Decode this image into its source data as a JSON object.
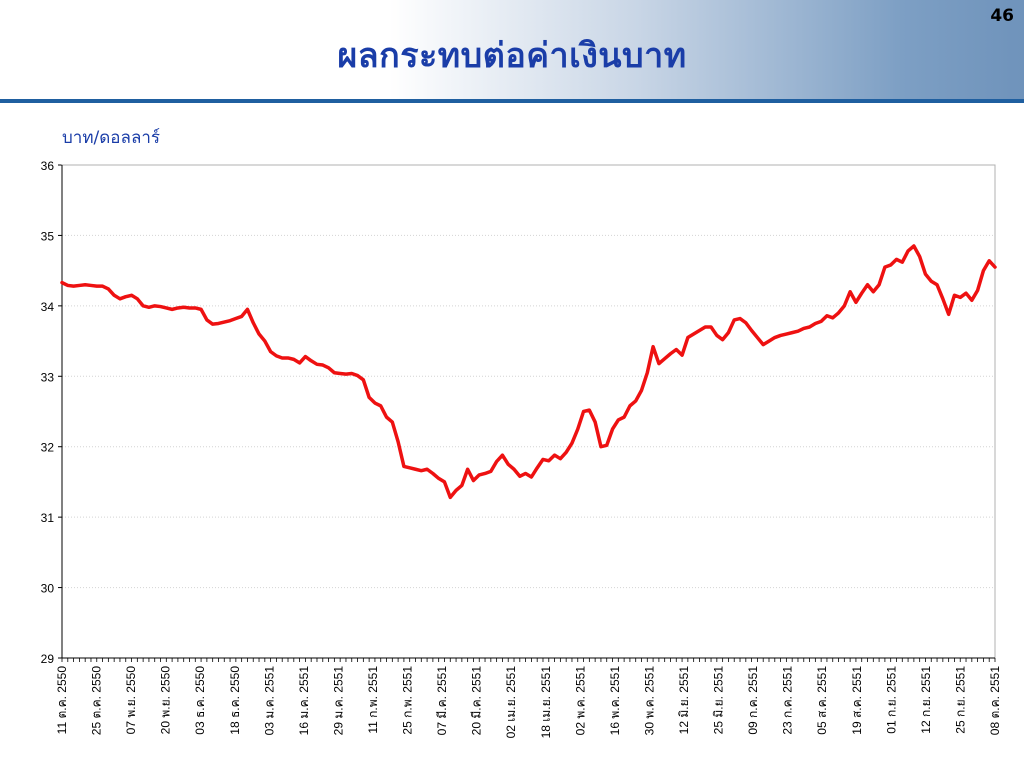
{
  "slide": {
    "title": "ผลกระทบต่อค่าเงินบาท",
    "page_number": "46",
    "unit_label": "บาท/ดอลลาร์"
  },
  "colors": {
    "line": "#ee1111",
    "title": "#1a3da8",
    "header_rule": "#1f5fa0",
    "grid": "#d4d4d4"
  },
  "chart_data": {
    "type": "line",
    "title": "",
    "xlabel": "",
    "ylabel": "บาท/ดอลลาร์",
    "ylim": [
      29,
      36
    ],
    "yticks": [
      29,
      30,
      31,
      32,
      33,
      34,
      35,
      36
    ],
    "grid": true,
    "legend": "none",
    "x_tick_labels": [
      "11 ต.ค. 2550",
      "25 ต.ค. 2550",
      "07 พ.ย. 2550",
      "20 พ.ย. 2550",
      "03 ธ.ค. 2550",
      "18 ธ.ค. 2550",
      "03 ม.ค. 2551",
      "16 ม.ค. 2551",
      "29 ม.ค. 2551",
      "11 ก.พ. 2551",
      "25 ก.พ. 2551",
      "07 มี.ค. 2551",
      "20 มี.ค. 2551",
      "02 เม.ย. 2551",
      "18 เม.ย. 2551",
      "02 พ.ค. 2551",
      "16 พ.ค. 2551",
      "30 พ.ค. 2551",
      "12 มิ.ย. 2551",
      "25 มิ.ย. 2551",
      "09 ก.ค. 2551",
      "23 ก.ค. 2551",
      "05 ส.ค. 2551",
      "19 ส.ค. 2551",
      "01 ก.ย. 2551",
      "12 ก.ย. 2551",
      "25 ก.ย. 2551",
      "08 ต.ค. 2551"
    ],
    "series": [
      {
        "values": [
          34.33,
          34.29,
          34.28,
          34.29,
          34.3,
          34.29,
          34.28,
          34.28,
          34.24,
          34.15,
          34.1,
          34.13,
          34.15,
          34.1,
          34.0,
          33.98,
          34.0,
          33.99,
          33.97,
          33.95,
          33.97,
          33.98,
          33.97,
          33.97,
          33.95,
          33.8,
          33.74,
          33.75,
          33.77,
          33.79,
          33.82,
          33.85,
          33.95,
          33.76,
          33.6,
          33.5,
          33.35,
          33.29,
          33.26,
          33.26,
          33.24,
          33.19,
          33.28,
          33.22,
          33.17,
          33.16,
          33.12,
          33.05,
          33.04,
          33.03,
          33.04,
          33.01,
          32.95,
          32.7,
          32.62,
          32.58,
          32.42,
          32.35,
          32.07,
          31.72,
          31.7,
          31.68,
          31.66,
          31.68,
          31.62,
          31.55,
          31.5,
          31.28,
          31.38,
          31.45,
          31.68,
          31.52,
          31.6,
          31.62,
          31.65,
          31.79,
          31.88,
          31.75,
          31.68,
          31.58,
          31.62,
          31.57,
          31.7,
          31.82,
          31.8,
          31.88,
          31.83,
          31.92,
          32.05,
          32.25,
          32.5,
          32.52,
          32.35,
          32.0,
          32.02,
          32.25,
          32.38,
          32.42,
          32.58,
          32.65,
          32.8,
          33.05,
          33.42,
          33.18,
          33.25,
          33.32,
          33.38,
          33.3,
          33.55,
          33.6,
          33.65,
          33.7,
          33.7,
          33.58,
          33.52,
          33.62,
          33.8,
          33.82,
          33.76,
          33.65,
          33.55,
          33.45,
          33.5,
          33.55,
          33.58,
          33.6,
          33.62,
          33.64,
          33.68,
          33.7,
          33.75,
          33.78,
          33.86,
          33.83,
          33.9,
          34.0,
          34.2,
          34.05,
          34.18,
          34.3,
          34.2,
          34.3,
          34.55,
          34.58,
          34.66,
          34.62,
          34.78,
          34.85,
          34.7,
          34.45,
          34.35,
          34.3,
          34.1,
          33.88,
          34.15,
          34.12,
          34.18,
          34.08,
          34.22,
          34.5,
          34.64,
          34.55
        ]
      }
    ]
  }
}
